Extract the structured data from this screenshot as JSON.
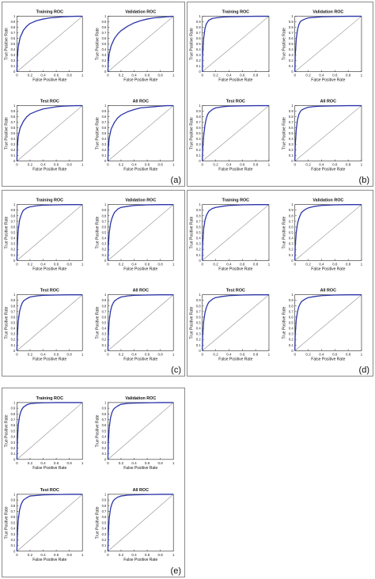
{
  "figure": {
    "panels": [
      {
        "label": "(a)",
        "rocs": [
          {
            "title": "Training ROC",
            "xlabel": "False Positive Rate",
            "ylabel": "True Positive Rate",
            "curve_x": [
              0,
              0.005,
              0.02,
              0.05,
              0.1,
              0.15,
              0.2,
              0.3,
              0.4,
              0.5,
              0.6,
              0.7,
              0.8,
              0.9,
              1
            ],
            "curve_y": [
              0,
              0.25,
              0.45,
              0.62,
              0.75,
              0.82,
              0.87,
              0.92,
              0.95,
              0.97,
              0.98,
              0.99,
              0.995,
              1,
              1
            ]
          },
          {
            "title": "Validation ROC",
            "xlabel": "False Positive Rate",
            "ylabel": "True Positive Rate",
            "curve_x": [
              0,
              0.005,
              0.02,
              0.05,
              0.1,
              0.15,
              0.2,
              0.3,
              0.4,
              0.5,
              0.6,
              0.7,
              0.8,
              0.9,
              1
            ],
            "curve_y": [
              0,
              0.18,
              0.33,
              0.47,
              0.6,
              0.68,
              0.74,
              0.82,
              0.88,
              0.92,
              0.95,
              0.97,
              0.98,
              0.99,
              1
            ]
          },
          {
            "title": "Test ROC",
            "xlabel": "False Positive Rate",
            "ylabel": "True Positive Rate",
            "curve_x": [
              0,
              0.005,
              0.02,
              0.05,
              0.1,
              0.15,
              0.2,
              0.3,
              0.4,
              0.5,
              0.6,
              0.7,
              0.8,
              0.9,
              1
            ],
            "curve_y": [
              0,
              0.25,
              0.45,
              0.6,
              0.72,
              0.8,
              0.85,
              0.9,
              0.94,
              0.96,
              0.98,
              0.99,
              0.995,
              1,
              1
            ]
          },
          {
            "title": "All ROC",
            "xlabel": "False Positive Rate",
            "ylabel": "True Positive Rate",
            "curve_x": [
              0,
              0.005,
              0.02,
              0.05,
              0.1,
              0.15,
              0.2,
              0.3,
              0.4,
              0.5,
              0.6,
              0.7,
              0.8,
              0.9,
              1
            ],
            "curve_y": [
              0,
              0.23,
              0.42,
              0.58,
              0.7,
              0.78,
              0.83,
              0.89,
              0.93,
              0.96,
              0.97,
              0.98,
              0.99,
              1,
              1
            ]
          }
        ]
      },
      {
        "label": "(b)",
        "rocs": [
          {
            "title": "Training ROC",
            "xlabel": "False Positive Rate",
            "ylabel": "True Positive Rate",
            "curve_x": [
              0,
              0.005,
              0.02,
              0.04,
              0.06,
              0.08,
              0.1,
              0.15,
              0.2,
              0.3,
              0.4,
              0.6,
              0.8,
              1
            ],
            "curve_y": [
              0,
              0.3,
              0.6,
              0.78,
              0.86,
              0.9,
              0.93,
              0.96,
              0.97,
              0.985,
              0.99,
              0.995,
              1,
              1
            ]
          },
          {
            "title": "Validation ROC",
            "xlabel": "False Positive Rate",
            "ylabel": "True Positive Rate",
            "curve_x": [
              0,
              0.005,
              0.02,
              0.04,
              0.06,
              0.08,
              0.1,
              0.15,
              0.2,
              0.3,
              0.4,
              0.6,
              0.8,
              1
            ],
            "curve_y": [
              0,
              0.28,
              0.58,
              0.76,
              0.85,
              0.9,
              0.92,
              0.95,
              0.97,
              0.98,
              0.99,
              0.995,
              1,
              1
            ]
          },
          {
            "title": "Test ROC",
            "xlabel": "False Positive Rate",
            "ylabel": "True Positive Rate",
            "curve_x": [
              0,
              0.005,
              0.02,
              0.04,
              0.06,
              0.08,
              0.1,
              0.15,
              0.2,
              0.3,
              0.4,
              0.6,
              0.8,
              1
            ],
            "curve_y": [
              0,
              0.2,
              0.45,
              0.65,
              0.77,
              0.84,
              0.88,
              0.93,
              0.96,
              0.98,
              0.99,
              0.995,
              1,
              1
            ]
          },
          {
            "title": "All ROC",
            "xlabel": "False Positive Rate",
            "ylabel": "True Positive Rate",
            "curve_x": [
              0,
              0.005,
              0.02,
              0.04,
              0.06,
              0.08,
              0.1,
              0.15,
              0.2,
              0.3,
              0.4,
              0.6,
              0.8,
              1
            ],
            "curve_y": [
              0,
              0.27,
              0.56,
              0.75,
              0.84,
              0.89,
              0.92,
              0.95,
              0.97,
              0.985,
              0.99,
              0.995,
              1,
              1
            ]
          }
        ]
      },
      {
        "label": "(c)",
        "rocs": [
          {
            "title": "Training ROC",
            "xlabel": "False Positive Rate",
            "ylabel": "True Positive Rate",
            "curve_x": [
              0,
              0.005,
              0.02,
              0.04,
              0.06,
              0.08,
              0.1,
              0.15,
              0.2,
              0.3,
              0.4,
              0.6,
              0.8,
              1
            ],
            "curve_y": [
              0,
              0.28,
              0.55,
              0.72,
              0.8,
              0.86,
              0.9,
              0.94,
              0.96,
              0.98,
              0.99,
              0.995,
              1,
              1
            ]
          },
          {
            "title": "Validation ROC",
            "xlabel": "False Positive Rate",
            "ylabel": "True Positive Rate",
            "curve_x": [
              0,
              0.005,
              0.02,
              0.04,
              0.06,
              0.08,
              0.1,
              0.15,
              0.2,
              0.3,
              0.4,
              0.6,
              0.8,
              1
            ],
            "curve_y": [
              0,
              0.25,
              0.5,
              0.66,
              0.75,
              0.81,
              0.86,
              0.92,
              0.95,
              0.97,
              0.985,
              0.995,
              1,
              1
            ]
          },
          {
            "title": "Test ROC",
            "xlabel": "False Positive Rate",
            "ylabel": "True Positive Rate",
            "curve_x": [
              0,
              0.005,
              0.02,
              0.04,
              0.06,
              0.08,
              0.1,
              0.15,
              0.2,
              0.3,
              0.4,
              0.6,
              0.8,
              1
            ],
            "curve_y": [
              0,
              0.27,
              0.53,
              0.7,
              0.79,
              0.85,
              0.89,
              0.93,
              0.96,
              0.98,
              0.99,
              0.995,
              1,
              1
            ]
          },
          {
            "title": "All ROC",
            "xlabel": "False Positive Rate",
            "ylabel": "True Positive Rate",
            "curve_x": [
              0,
              0.005,
              0.02,
              0.04,
              0.06,
              0.08,
              0.1,
              0.15,
              0.2,
              0.3,
              0.4,
              0.6,
              0.8,
              1
            ],
            "curve_y": [
              0,
              0.28,
              0.54,
              0.71,
              0.8,
              0.85,
              0.89,
              0.93,
              0.96,
              0.98,
              0.99,
              0.995,
              1,
              1
            ]
          }
        ]
      },
      {
        "label": "(d)",
        "rocs": [
          {
            "title": "Training ROC",
            "xlabel": "False Positive Rate",
            "ylabel": "True Positive Rate",
            "curve_x": [
              0,
              0.005,
              0.02,
              0.04,
              0.06,
              0.08,
              0.1,
              0.15,
              0.2,
              0.3,
              0.4,
              0.6,
              0.8,
              1
            ],
            "curve_y": [
              0,
              0.3,
              0.57,
              0.72,
              0.8,
              0.85,
              0.89,
              0.93,
              0.95,
              0.97,
              0.985,
              0.995,
              1,
              1
            ]
          },
          {
            "title": "Validation ROC",
            "xlabel": "False Positive Rate",
            "ylabel": "True Positive Rate",
            "curve_x": [
              0,
              0.005,
              0.02,
              0.04,
              0.06,
              0.08,
              0.1,
              0.15,
              0.2,
              0.3,
              0.4,
              0.6,
              0.8,
              1
            ],
            "curve_y": [
              0,
              0.25,
              0.5,
              0.66,
              0.75,
              0.81,
              0.86,
              0.91,
              0.94,
              0.97,
              0.985,
              0.995,
              1,
              1
            ]
          },
          {
            "title": "Test ROC",
            "xlabel": "False Positive Rate",
            "ylabel": "True Positive Rate",
            "curve_x": [
              0,
              0.005,
              0.02,
              0.04,
              0.06,
              0.08,
              0.1,
              0.15,
              0.2,
              0.3,
              0.4,
              0.6,
              0.8,
              1
            ],
            "curve_y": [
              0,
              0.26,
              0.52,
              0.68,
              0.77,
              0.83,
              0.87,
              0.92,
              0.95,
              0.97,
              0.985,
              0.995,
              1,
              1
            ]
          },
          {
            "title": "All ROC",
            "xlabel": "False Positive Rate",
            "ylabel": "True Positive Rate",
            "curve_x": [
              0,
              0.005,
              0.02,
              0.04,
              0.06,
              0.08,
              0.1,
              0.15,
              0.2,
              0.3,
              0.4,
              0.6,
              0.8,
              1
            ],
            "curve_y": [
              0,
              0.28,
              0.55,
              0.7,
              0.79,
              0.84,
              0.88,
              0.92,
              0.95,
              0.97,
              0.985,
              0.995,
              1,
              1
            ]
          }
        ]
      },
      {
        "label": "(e)",
        "rocs": [
          {
            "title": "Training ROC",
            "xlabel": "False Positive Rate",
            "ylabel": "True Positive Rate",
            "curve_x": [
              0,
              0.005,
              0.02,
              0.04,
              0.06,
              0.08,
              0.1,
              0.15,
              0.2,
              0.3,
              0.4,
              0.6,
              0.8,
              1
            ],
            "curve_y": [
              0,
              0.3,
              0.6,
              0.76,
              0.84,
              0.89,
              0.92,
              0.96,
              0.98,
              0.99,
              0.995,
              1,
              1,
              1
            ]
          },
          {
            "title": "Validation ROC",
            "xlabel": "False Positive Rate",
            "ylabel": "True Positive Rate",
            "curve_x": [
              0,
              0.005,
              0.02,
              0.04,
              0.06,
              0.08,
              0.1,
              0.15,
              0.2,
              0.3,
              0.4,
              0.6,
              0.8,
              1
            ],
            "curve_y": [
              0,
              0.28,
              0.56,
              0.73,
              0.82,
              0.87,
              0.9,
              0.94,
              0.97,
              0.985,
              0.99,
              0.995,
              1,
              1
            ]
          },
          {
            "title": "Test ROC",
            "xlabel": "False Positive Rate",
            "ylabel": "True Positive Rate",
            "curve_x": [
              0,
              0.005,
              0.02,
              0.04,
              0.06,
              0.08,
              0.1,
              0.15,
              0.2,
              0.3,
              0.4,
              0.6,
              0.8,
              1
            ],
            "curve_y": [
              0,
              0.28,
              0.55,
              0.72,
              0.81,
              0.86,
              0.9,
              0.94,
              0.97,
              0.98,
              0.99,
              0.995,
              1,
              1
            ]
          },
          {
            "title": "All ROC",
            "xlabel": "False Positive Rate",
            "ylabel": "True Positive Rate",
            "curve_x": [
              0,
              0.005,
              0.02,
              0.04,
              0.06,
              0.08,
              0.1,
              0.15,
              0.2,
              0.3,
              0.4,
              0.6,
              0.8,
              1
            ],
            "curve_y": [
              0,
              0.3,
              0.58,
              0.75,
              0.83,
              0.88,
              0.91,
              0.95,
              0.97,
              0.985,
              0.99,
              0.995,
              1,
              1
            ]
          }
        ]
      }
    ]
  },
  "chart_data": {
    "type": "line",
    "xlim": [
      0,
      1
    ],
    "ylim": [
      0,
      1
    ],
    "xticks": [
      "0",
      "0.2",
      "0.4",
      "0.6",
      "0.8",
      "1"
    ],
    "yticks": [
      "0",
      "0.1",
      "0.2",
      "0.3",
      "0.4",
      "0.5",
      "0.6",
      "0.7",
      "0.8",
      "0.9",
      "1"
    ],
    "curve_color": "#2b35a8",
    "diagonal_color": "#8c8c8c",
    "grid": false
  }
}
